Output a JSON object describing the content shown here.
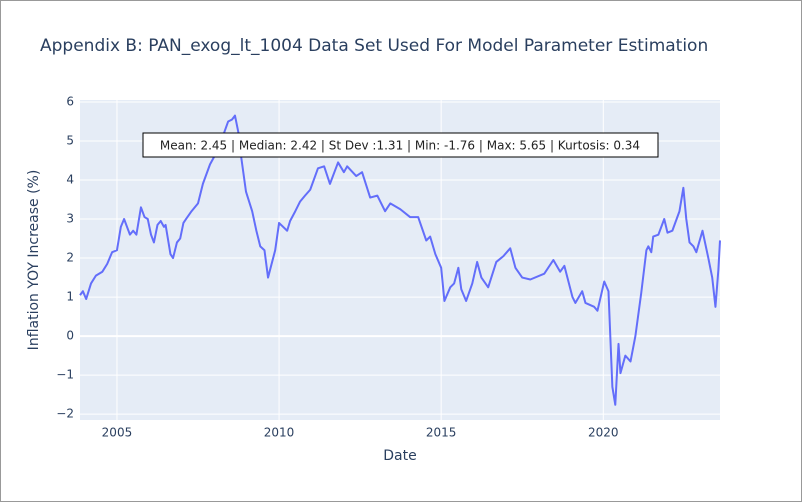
{
  "chart_data": {
    "type": "line",
    "title": "Appendix B: PAN_exog_lt_1004 Data Set Used For Model Parameter Estimation",
    "x_label": "Date",
    "y_label": "Inflation YOY Increase (%)",
    "annotation": "Mean: 2.45 | Median: 2.42 | St Dev :1.31 | Min: -1.76 | Max: 5.65 | Kurtosis: 0.34",
    "x": [
      2003.86,
      2003.95,
      2004.05,
      2004.2,
      2004.35,
      2004.55,
      2004.7,
      2004.85,
      2005.0,
      2005.12,
      2005.22,
      2005.4,
      2005.5,
      2005.6,
      2005.74,
      2005.85,
      2005.95,
      2006.05,
      2006.14,
      2006.25,
      2006.35,
      2006.45,
      2006.5,
      2006.65,
      2006.73,
      2006.85,
      2006.95,
      2007.05,
      2007.13,
      2007.3,
      2007.5,
      2007.65,
      2007.87,
      2008.0,
      2008.12,
      2008.3,
      2008.43,
      2008.55,
      2008.64,
      2008.75,
      2008.83,
      2008.98,
      2009.17,
      2009.3,
      2009.42,
      2009.55,
      2009.66,
      2009.88,
      2010.0,
      2010.25,
      2010.34,
      2010.5,
      2010.65,
      2010.8,
      2010.96,
      2011.2,
      2011.39,
      2011.57,
      2011.82,
      2012.0,
      2012.1,
      2012.38,
      2012.56,
      2012.81,
      2013.03,
      2013.27,
      2013.43,
      2013.74,
      2014.04,
      2014.29,
      2014.54,
      2014.66,
      2014.82,
      2015.0,
      2015.1,
      2015.28,
      2015.4,
      2015.53,
      2015.62,
      2015.77,
      2015.96,
      2016.11,
      2016.24,
      2016.45,
      2016.7,
      2016.92,
      2017.13,
      2017.29,
      2017.5,
      2017.75,
      2018.18,
      2018.46,
      2018.67,
      2018.8,
      2019.05,
      2019.14,
      2019.35,
      2019.45,
      2019.72,
      2019.82,
      2020.03,
      2020.16,
      2020.28,
      2020.37,
      2020.47,
      2020.53,
      2020.68,
      2020.84,
      2020.99,
      2021.17,
      2021.33,
      2021.39,
      2021.48,
      2021.54,
      2021.7,
      2021.88,
      2021.98,
      2022.13,
      2022.35,
      2022.47,
      2022.56,
      2022.66,
      2022.78,
      2022.87,
      2023.06,
      2023.24,
      2023.36,
      2023.46,
      2023.55,
      2023.6
    ],
    "series": [
      {
        "name": "Inflation",
        "color": "#636efa",
        "values": [
          1.05,
          1.15,
          0.95,
          1.35,
          1.55,
          1.65,
          1.85,
          2.15,
          2.2,
          2.8,
          3.0,
          2.6,
          2.7,
          2.6,
          3.3,
          3.05,
          3.0,
          2.6,
          2.4,
          2.85,
          2.95,
          2.8,
          2.85,
          2.1,
          2.0,
          2.4,
          2.5,
          2.9,
          3.0,
          3.2,
          3.4,
          3.9,
          4.4,
          4.6,
          4.9,
          5.2,
          5.5,
          5.55,
          5.65,
          5.2,
          4.6,
          3.7,
          3.2,
          2.7,
          2.3,
          2.2,
          1.5,
          2.2,
          2.9,
          2.7,
          2.95,
          3.2,
          3.45,
          3.6,
          3.75,
          4.3,
          4.35,
          3.9,
          4.45,
          4.2,
          4.35,
          4.1,
          4.2,
          3.55,
          3.6,
          3.2,
          3.4,
          3.25,
          3.05,
          3.05,
          2.45,
          2.55,
          2.1,
          1.75,
          0.9,
          1.25,
          1.35,
          1.75,
          1.2,
          0.9,
          1.35,
          1.9,
          1.5,
          1.25,
          1.9,
          2.05,
          2.25,
          1.75,
          1.5,
          1.45,
          1.6,
          1.95,
          1.65,
          1.8,
          1.0,
          0.85,
          1.15,
          0.85,
          0.75,
          0.65,
          1.4,
          1.15,
          -1.3,
          -1.76,
          -0.2,
          -0.95,
          -0.5,
          -0.65,
          0.0,
          1.1,
          2.2,
          2.3,
          2.15,
          2.55,
          2.6,
          3.0,
          2.65,
          2.7,
          3.2,
          3.8,
          3.0,
          2.4,
          2.3,
          2.15,
          2.7,
          2.0,
          1.5,
          0.75,
          1.7,
          2.45
        ]
      }
    ],
    "xlim": [
      2003.86,
      2023.6
    ],
    "ylim": [
      -2.15,
      6.05
    ],
    "xticks": [
      2005,
      2010,
      2015,
      2020
    ],
    "yticks": [
      {
        "value": -2,
        "label": "−2"
      },
      {
        "value": -1,
        "label": "−1"
      },
      0,
      1,
      2,
      3,
      4,
      5,
      6
    ],
    "grid": true
  }
}
